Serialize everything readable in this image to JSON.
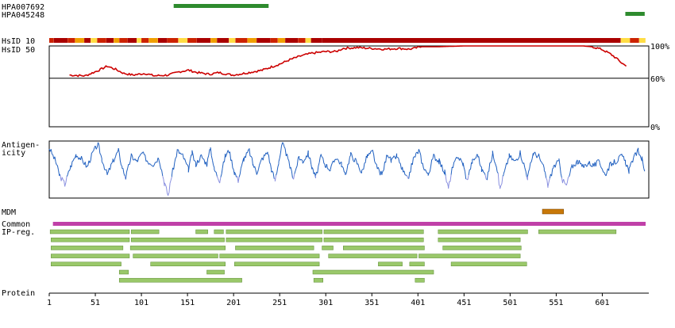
{
  "chart_data": {
    "type": "protein-feature-map",
    "antibodies": [
      {
        "label": "HPA007692",
        "start": 136,
        "end": 239,
        "color": "#2e8b2e"
      },
      {
        "label": "HPA045248",
        "start": 626,
        "end": 647,
        "color": "#2e8b2e"
      }
    ],
    "hsid": {
      "label_10": "HsID 10",
      "label_50": "HsID 50",
      "y_ticks": [
        "100%",
        "60%",
        "0%"
      ],
      "ylim": [
        0,
        100
      ],
      "threshold": 60,
      "line_color": "#cc0000",
      "points": [
        [
          23,
          64
        ],
        [
          40,
          63
        ],
        [
          55,
          70
        ],
        [
          64,
          75
        ],
        [
          73,
          71
        ],
        [
          82,
          66
        ],
        [
          92,
          64
        ],
        [
          105,
          66
        ],
        [
          115,
          63
        ],
        [
          130,
          64
        ],
        [
          142,
          68
        ],
        [
          152,
          70
        ],
        [
          162,
          67
        ],
        [
          175,
          65
        ],
        [
          185,
          67
        ],
        [
          200,
          64
        ],
        [
          212,
          66
        ],
        [
          222,
          68
        ],
        [
          232,
          70
        ],
        [
          242,
          74
        ],
        [
          252,
          78
        ],
        [
          262,
          83
        ],
        [
          275,
          88
        ],
        [
          286,
          91
        ],
        [
          300,
          93
        ],
        [
          312,
          93
        ],
        [
          320,
          97
        ],
        [
          335,
          98
        ],
        [
          350,
          97
        ],
        [
          365,
          96
        ],
        [
          380,
          97
        ],
        [
          392,
          96
        ],
        [
          405,
          99
        ],
        [
          420,
          99
        ],
        [
          450,
          100
        ],
        [
          500,
          100
        ],
        [
          550,
          100
        ],
        [
          580,
          100
        ],
        [
          590,
          99
        ],
        [
          600,
          96
        ],
        [
          610,
          90
        ],
        [
          616,
          85
        ],
        [
          622,
          79
        ],
        [
          627,
          75
        ]
      ],
      "conservation_bar": {
        "colors": {
          "high": "#aa0000",
          "mid": "#cc2200",
          "low": "#f0a000",
          "min": "#ffdd44"
        },
        "segments": [
          [
            1,
            5,
            "mid"
          ],
          [
            6,
            20,
            "high"
          ],
          [
            21,
            28,
            "mid"
          ],
          [
            29,
            38,
            "low"
          ],
          [
            39,
            45,
            "high"
          ],
          [
            46,
            52,
            "min"
          ],
          [
            53,
            62,
            "mid"
          ],
          [
            63,
            70,
            "high"
          ],
          [
            71,
            76,
            "low"
          ],
          [
            77,
            85,
            "mid"
          ],
          [
            86,
            95,
            "high"
          ],
          [
            96,
            100,
            "min"
          ],
          [
            101,
            108,
            "mid"
          ],
          [
            109,
            118,
            "low"
          ],
          [
            119,
            128,
            "high"
          ],
          [
            129,
            140,
            "mid"
          ],
          [
            141,
            150,
            "min"
          ],
          [
            151,
            160,
            "mid"
          ],
          [
            161,
            175,
            "high"
          ],
          [
            176,
            182,
            "low"
          ],
          [
            183,
            195,
            "high"
          ],
          [
            196,
            202,
            "min"
          ],
          [
            203,
            215,
            "mid"
          ],
          [
            216,
            225,
            "low"
          ],
          [
            226,
            240,
            "high"
          ],
          [
            241,
            248,
            "mid"
          ],
          [
            249,
            256,
            "low"
          ],
          [
            257,
            270,
            "high"
          ],
          [
            271,
            278,
            "mid"
          ],
          [
            279,
            284,
            "min"
          ],
          [
            285,
            296,
            "high"
          ],
          [
            297,
            620,
            "high"
          ],
          [
            621,
            630,
            "min"
          ],
          [
            631,
            640,
            "mid"
          ],
          [
            641,
            647,
            "min"
          ]
        ]
      }
    },
    "antigenicity": {
      "label": "Antigen-\nicity",
      "ylim": [
        -1,
        1
      ],
      "colors": {
        "high": "#2060c0",
        "low": "#8a90e0"
      },
      "points": [
        [
          1,
          0.8
        ],
        [
          8,
          0.3
        ],
        [
          12,
          -0.2
        ],
        [
          18,
          -0.55
        ],
        [
          24,
          0.1
        ],
        [
          30,
          0.55
        ],
        [
          36,
          0.4
        ],
        [
          42,
          0.1
        ],
        [
          48,
          0.6
        ],
        [
          54,
          0.95
        ],
        [
          58,
          0.4
        ],
        [
          64,
          -0.2
        ],
        [
          70,
          0.3
        ],
        [
          76,
          0.7
        ],
        [
          80,
          0.1
        ],
        [
          84,
          -0.3
        ],
        [
          90,
          0.5
        ],
        [
          96,
          0.3
        ],
        [
          102,
          0.6
        ],
        [
          108,
          0.3
        ],
        [
          114,
          0.2
        ],
        [
          120,
          0.45
        ],
        [
          126,
          -0.5
        ],
        [
          130,
          -0.95
        ],
        [
          134,
          -0.2
        ],
        [
          140,
          0.7
        ],
        [
          146,
          0.5
        ],
        [
          152,
          0.0
        ],
        [
          156,
          0.6
        ],
        [
          160,
          0.2
        ],
        [
          166,
          0.5
        ],
        [
          172,
          0.2
        ],
        [
          176,
          0.8
        ],
        [
          180,
          0.0
        ],
        [
          186,
          -0.4
        ],
        [
          192,
          0.5
        ],
        [
          196,
          0.7
        ],
        [
          202,
          -0.1
        ],
        [
          206,
          -0.4
        ],
        [
          212,
          0.4
        ],
        [
          218,
          0.7
        ],
        [
          222,
          0.2
        ],
        [
          226,
          -0.1
        ],
        [
          232,
          0.4
        ],
        [
          238,
          0.65
        ],
        [
          242,
          0.0
        ],
        [
          246,
          -0.4
        ],
        [
          250,
          0.3
        ],
        [
          254,
          0.95
        ],
        [
          258,
          0.6
        ],
        [
          262,
          0.1
        ],
        [
          266,
          -0.3
        ],
        [
          272,
          0.45
        ],
        [
          276,
          0.3
        ],
        [
          282,
          0.6
        ],
        [
          286,
          0.1
        ],
        [
          290,
          -0.3
        ],
        [
          296,
          0.5
        ],
        [
          300,
          0.2
        ],
        [
          306,
          0.0
        ],
        [
          312,
          0.45
        ],
        [
          318,
          0.2
        ],
        [
          322,
          -0.2
        ],
        [
          328,
          0.55
        ],
        [
          334,
          0.3
        ],
        [
          340,
          -0.1
        ],
        [
          346,
          0.5
        ],
        [
          352,
          0.65
        ],
        [
          356,
          0.1
        ],
        [
          362,
          -0.2
        ],
        [
          368,
          0.6
        ],
        [
          372,
          0.3
        ],
        [
          378,
          0.5
        ],
        [
          384,
          0.0
        ],
        [
          390,
          -0.4
        ],
        [
          396,
          0.4
        ],
        [
          402,
          0.7
        ],
        [
          406,
          0.2
        ],
        [
          412,
          -0.2
        ],
        [
          418,
          0.5
        ],
        [
          424,
          0.3
        ],
        [
          430,
          -0.1
        ],
        [
          434,
          -0.7
        ],
        [
          438,
          0.0
        ],
        [
          444,
          0.5
        ],
        [
          450,
          0.2
        ],
        [
          454,
          -0.4
        ],
        [
          460,
          0.3
        ],
        [
          466,
          0.55
        ],
        [
          470,
          0.0
        ],
        [
          476,
          -0.3
        ],
        [
          482,
          0.6
        ],
        [
          486,
          0.2
        ],
        [
          490,
          -0.7
        ],
        [
          494,
          -0.2
        ],
        [
          500,
          0.5
        ],
        [
          506,
          0.3
        ],
        [
          512,
          0.6
        ],
        [
          516,
          0.2
        ],
        [
          520,
          -0.3
        ],
        [
          526,
          0.6
        ],
        [
          532,
          0.5
        ],
        [
          538,
          0.0
        ],
        [
          542,
          -0.6
        ],
        [
          548,
          0.1
        ],
        [
          554,
          0.3
        ],
        [
          558,
          -0.4
        ],
        [
          562,
          -0.6
        ],
        [
          568,
          0.1
        ],
        [
          574,
          0.3
        ],
        [
          580,
          0.1
        ],
        [
          586,
          0.25
        ],
        [
          592,
          0.15
        ],
        [
          598,
          0.3
        ],
        [
          604,
          -0.2
        ],
        [
          610,
          0.2
        ],
        [
          616,
          0.3
        ],
        [
          622,
          0.5
        ],
        [
          626,
          0.3
        ],
        [
          630,
          -0.05
        ],
        [
          634,
          0.35
        ],
        [
          640,
          0.7
        ],
        [
          644,
          0.4
        ],
        [
          647,
          -0.1
        ]
      ]
    },
    "mdm": {
      "label": "MDM",
      "start": 536,
      "end": 559,
      "color": "#c87808"
    },
    "common_ip_reg": {
      "label": "Common\nIP-reg.",
      "bar_color": "#c040a8",
      "bar_range": [
        5,
        648
      ],
      "segment_color": "#9ac86a",
      "rows": [
        [
          [
            2,
            88
          ],
          [
            90,
            120
          ],
          [
            160,
            173
          ],
          [
            180,
            190
          ],
          [
            193,
            297
          ],
          [
            299,
            407
          ],
          [
            423,
            520
          ],
          [
            532,
            616
          ]
        ],
        [
          [
            3,
            88
          ],
          [
            90,
            191
          ],
          [
            193,
            297
          ],
          [
            299,
            407
          ],
          [
            423,
            512
          ]
        ],
        [
          [
            3,
            81
          ],
          [
            89,
            192
          ],
          [
            203,
            288
          ],
          [
            297,
            309
          ],
          [
            320,
            408
          ],
          [
            428,
            513
          ]
        ],
        [
          [
            3,
            88
          ],
          [
            92,
            184
          ],
          [
            186,
            294
          ],
          [
            304,
            400
          ],
          [
            402,
            512
          ]
        ],
        [
          [
            3,
            79
          ],
          [
            111,
            192
          ],
          [
            202,
            294
          ],
          [
            358,
            384
          ],
          [
            392,
            408
          ],
          [
            437,
            519
          ]
        ],
        [
          [
            77,
            87
          ],
          [
            172,
            191
          ],
          [
            287,
            418
          ]
        ],
        [
          [
            77,
            210
          ],
          [
            288,
            298
          ],
          [
            398,
            408
          ]
        ]
      ]
    },
    "axis": {
      "label": "Protein",
      "xlim": [
        1,
        648
      ],
      "ticks": [
        1,
        51,
        101,
        151,
        201,
        251,
        301,
        351,
        401,
        451,
        501,
        551,
        601
      ]
    }
  }
}
